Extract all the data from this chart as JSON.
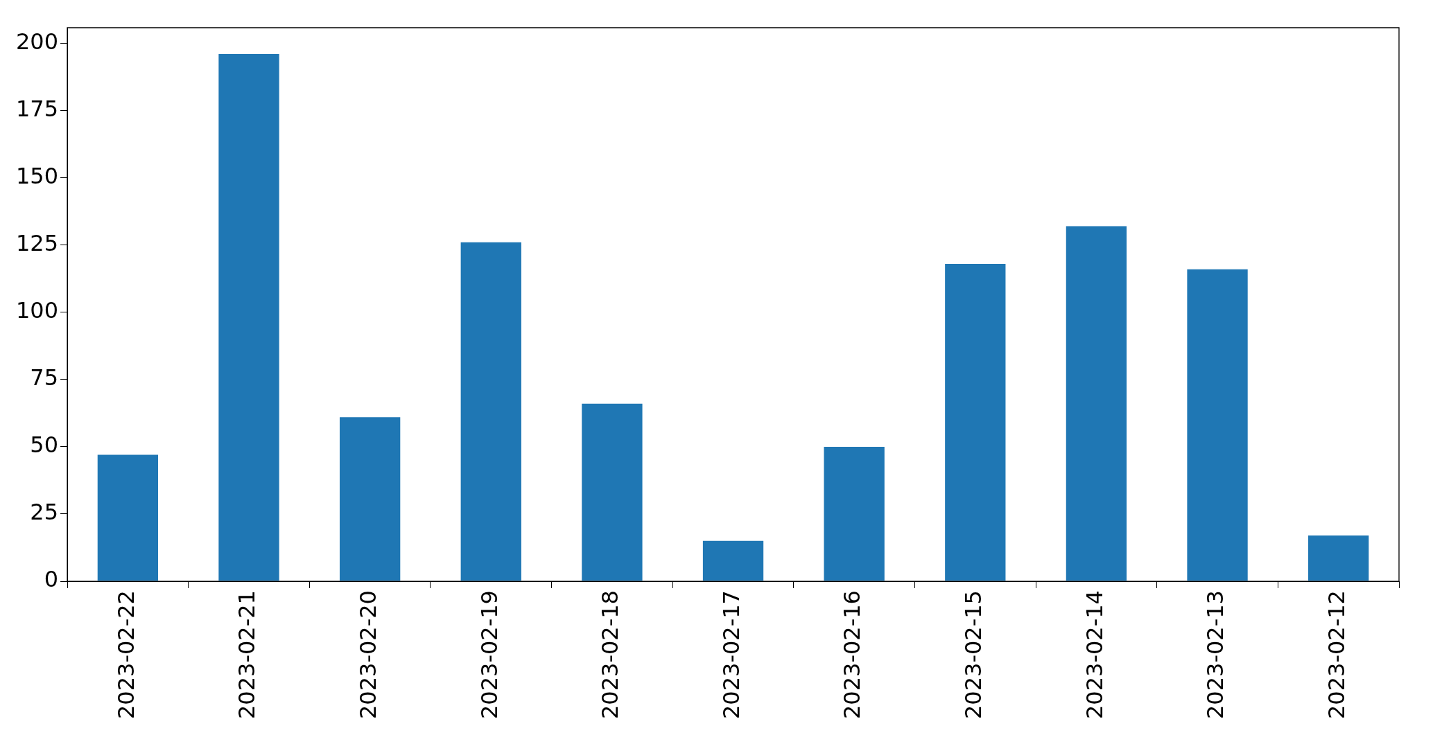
{
  "chart_data": {
    "type": "bar",
    "categories": [
      "2023-02-22",
      "2023-02-21",
      "2023-02-20",
      "2023-02-19",
      "2023-02-18",
      "2023-02-17",
      "2023-02-16",
      "2023-02-15",
      "2023-02-14",
      "2023-02-13",
      "2023-02-12"
    ],
    "values": [
      47,
      196,
      61,
      126,
      66,
      15,
      50,
      118,
      132,
      116,
      17
    ],
    "color": "#1f77b4",
    "ylim": [
      0,
      205.8
    ],
    "yticks": [
      0,
      25,
      50,
      75,
      100,
      125,
      150,
      175,
      200
    ],
    "grid": false,
    "legend": false
  }
}
